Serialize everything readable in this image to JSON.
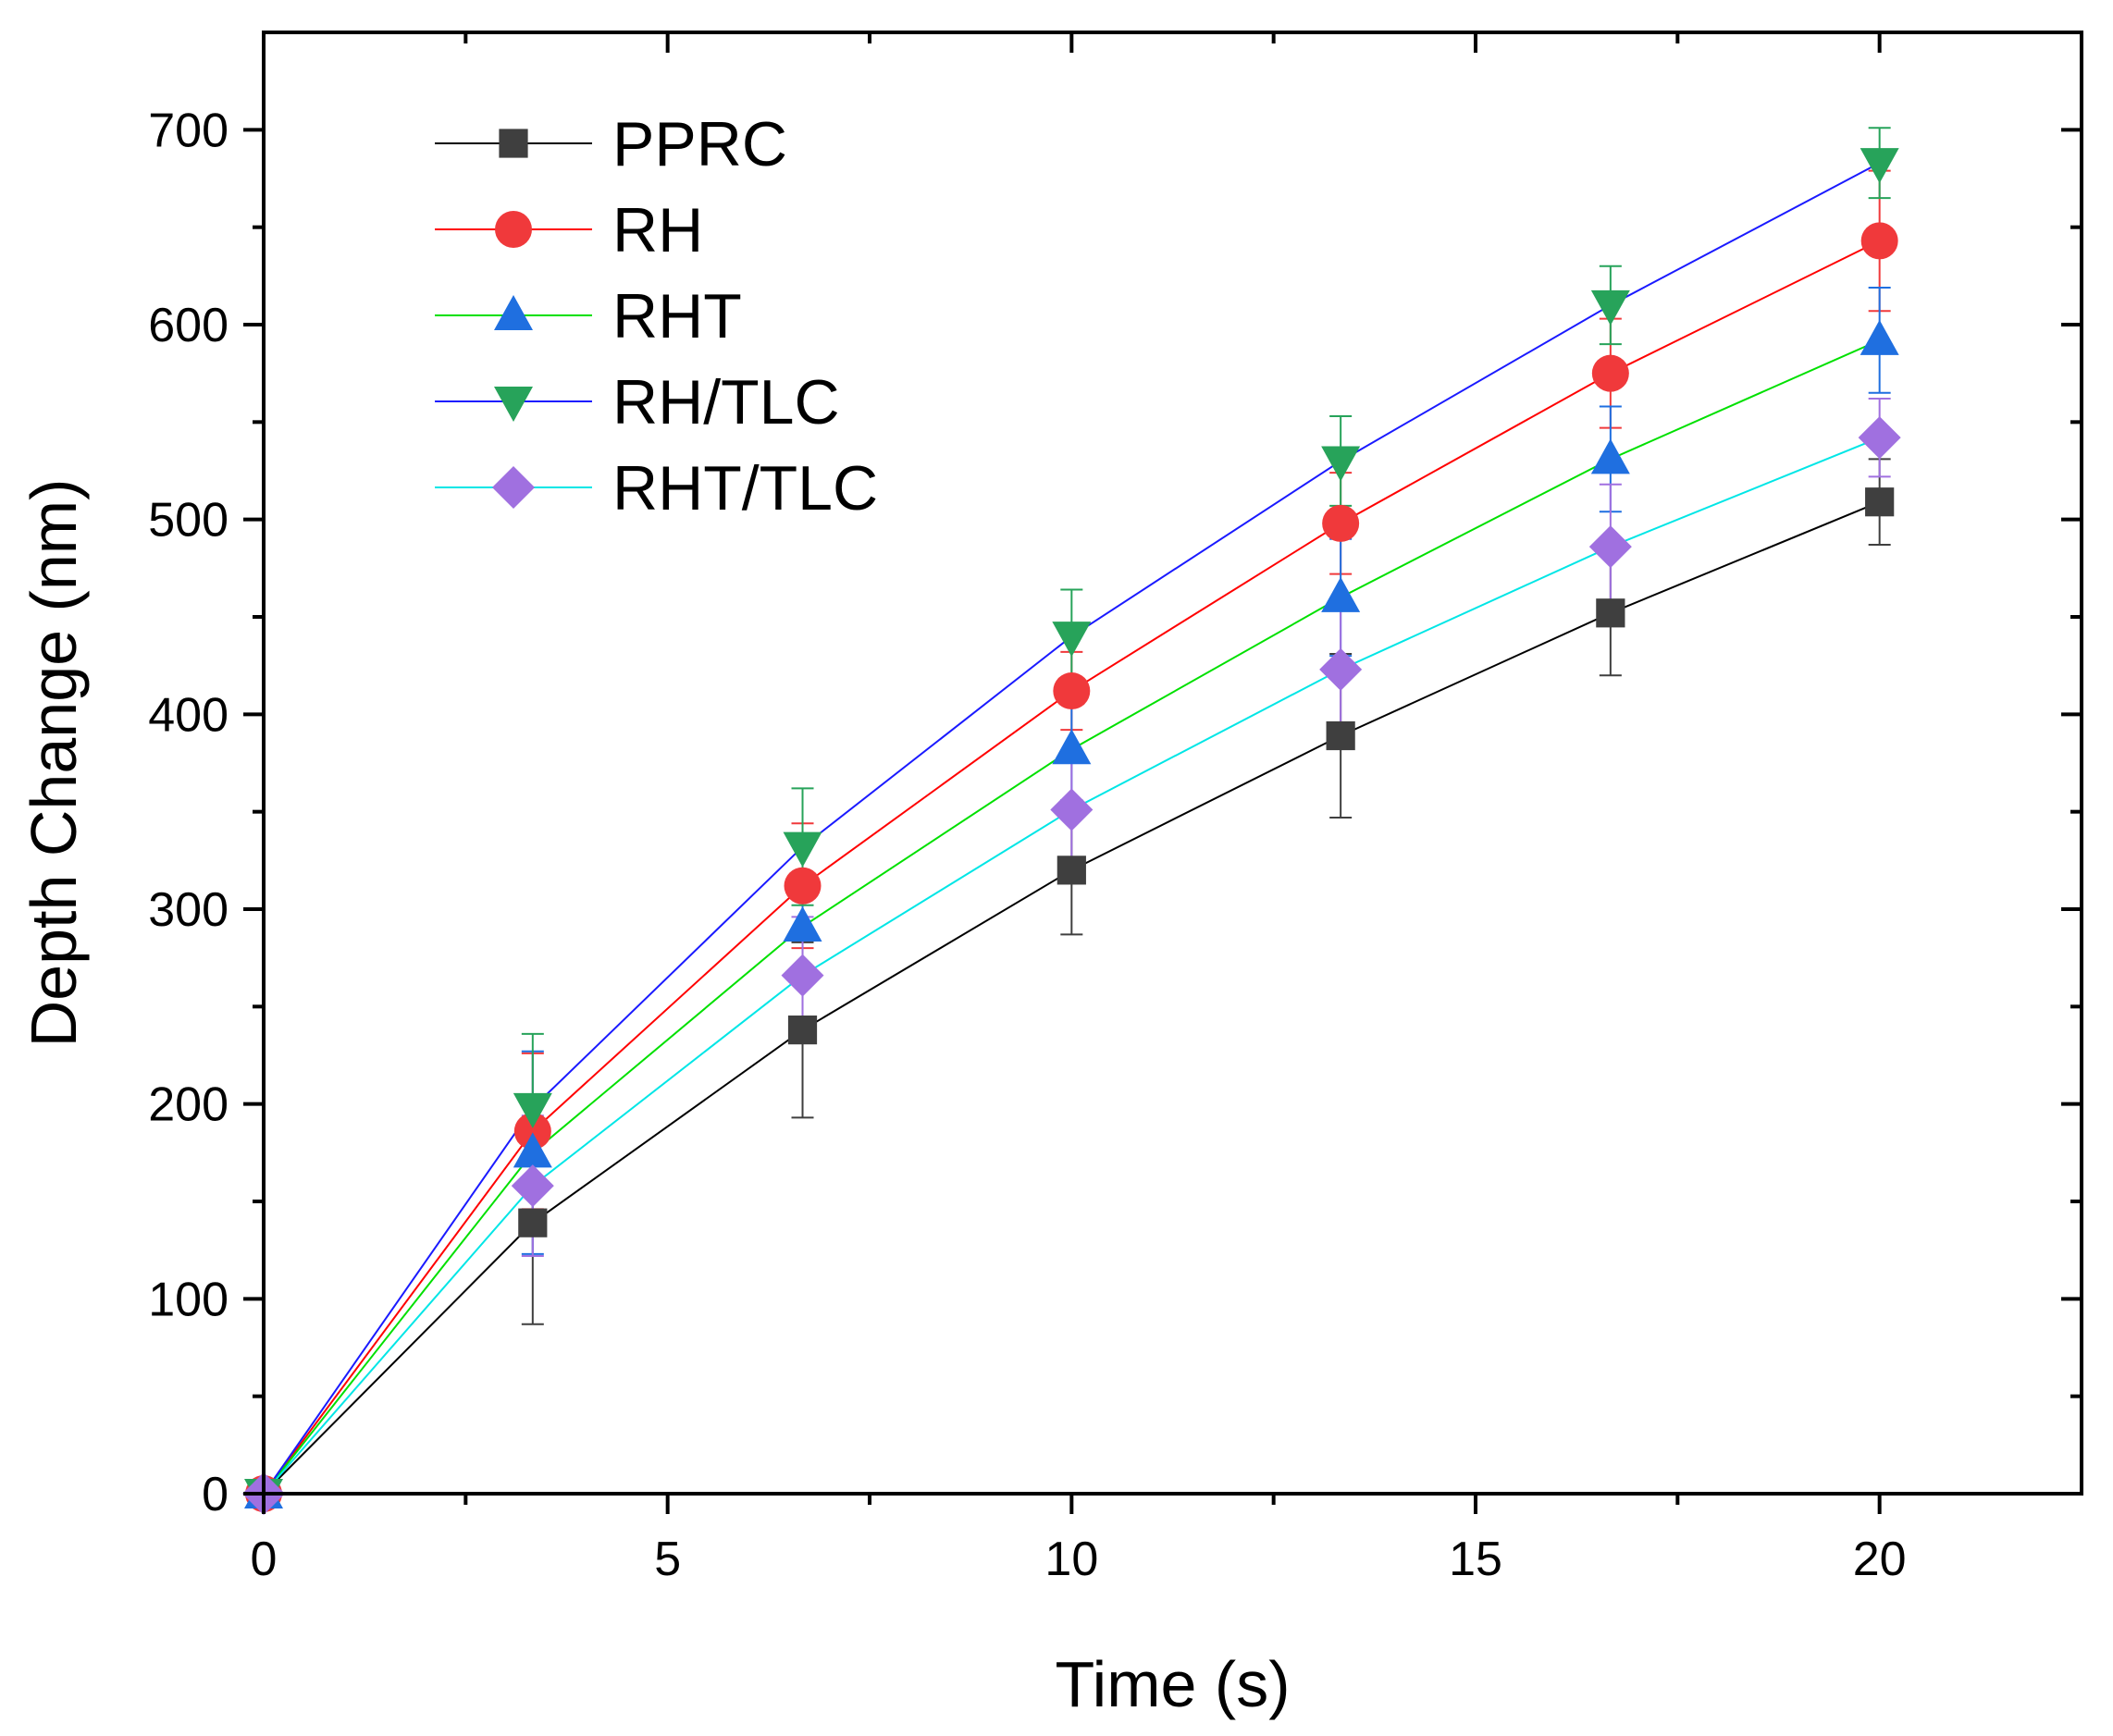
{
  "chart_data": {
    "type": "line",
    "title": "",
    "xlabel": "Time (s)",
    "ylabel": "Depth Change (nm)",
    "xlim": [
      0,
      22.5
    ],
    "ylim": [
      0,
      750
    ],
    "x_ticks": [
      0,
      5,
      10,
      15,
      20
    ],
    "x_tick_labels": [
      "0",
      "5",
      "10",
      "15",
      "20"
    ],
    "y_ticks": [
      0,
      100,
      200,
      300,
      400,
      500,
      600,
      700
    ],
    "y_tick_labels": [
      "0",
      "100",
      "200",
      "300",
      "400",
      "500",
      "600",
      "700"
    ],
    "legend_position": "top-left",
    "grid": false,
    "x": [
      0,
      3.33,
      6.67,
      10,
      13.33,
      16.67,
      20
    ],
    "series": [
      {
        "name": "PPRC",
        "marker": "square",
        "line_color": "#000000",
        "marker_color": "#3f3f3f",
        "values": [
          0,
          139,
          238,
          320,
          389,
          452,
          509
        ],
        "errors": [
          0,
          52,
          45,
          33,
          42,
          32,
          22
        ]
      },
      {
        "name": "RH",
        "marker": "circle",
        "line_color": "#ff0000",
        "marker_color": "#f0393b",
        "values": [
          0,
          186,
          312,
          412,
          498,
          575,
          643
        ],
        "errors": [
          0,
          40,
          32,
          20,
          26,
          28,
          36
        ]
      },
      {
        "name": "RHT",
        "marker": "triangle-up",
        "line_color": "#00e000",
        "marker_color": "#1f6fe0",
        "values": [
          0,
          175,
          291,
          382,
          460,
          531,
          592
        ],
        "errors": [
          0,
          52,
          28,
          26,
          30,
          27,
          27
        ]
      },
      {
        "name": "RH/TLC",
        "marker": "triangle-down",
        "line_color": "#1a1aff",
        "marker_color": "#27a35a",
        "values": [
          0,
          198,
          332,
          440,
          530,
          610,
          683
        ],
        "errors": [
          0,
          38,
          30,
          24,
          23,
          20,
          18
        ]
      },
      {
        "name": "RHT/TLC",
        "marker": "diamond",
        "line_color": "#00e6e6",
        "marker_color": "#a070e0",
        "values": [
          0,
          158,
          266,
          351,
          423,
          486,
          542
        ],
        "errors": [
          0,
          36,
          30,
          30,
          34,
          32,
          20
        ]
      }
    ]
  }
}
